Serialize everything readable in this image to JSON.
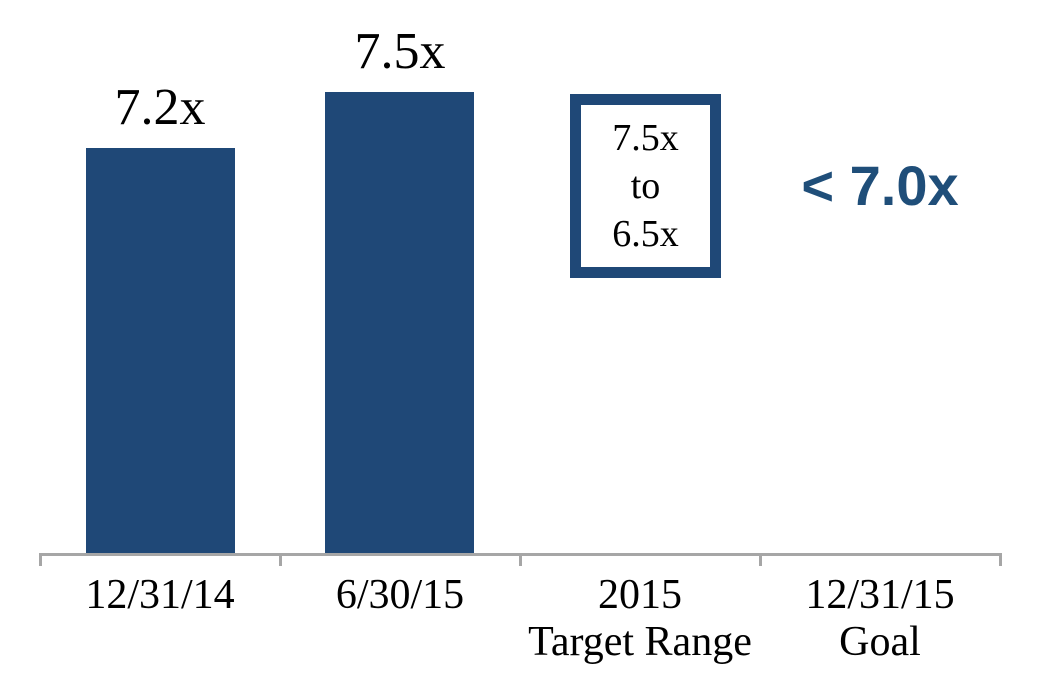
{
  "chart_data": {
    "type": "bar",
    "title": "",
    "categories": [
      "12/31/14",
      "6/30/15",
      "2015 Target Range",
      "12/31/15 Goal"
    ],
    "series": [
      {
        "name": "leverage-ratio",
        "values": [
          7.2,
          7.5,
          null,
          null
        ]
      }
    ],
    "bar_value_labels": [
      "7.2x",
      "7.5x"
    ],
    "target_range": {
      "high": "7.5x",
      "connector": "to",
      "low": "6.5x"
    },
    "goal_label": "< 7.0x",
    "ylim": [
      5.0,
      8.0
    ],
    "grid": false,
    "legend": false,
    "layout_hints": {
      "axis_color": "#a6a6a6",
      "bar_color": "#1f4877",
      "goal_text_color": "#1f4e79",
      "value_label_position": "above-bar",
      "tick_count": 5
    }
  },
  "bars": [
    {
      "value_label": "7.2x"
    },
    {
      "value_label": "7.5x"
    }
  ],
  "target_box": {
    "line1": "7.5x",
    "line2": "to",
    "line3": "6.5x"
  },
  "goal": {
    "text": "< 7.0x"
  },
  "axis_labels": [
    {
      "line1": "12/31/14",
      "line2": ""
    },
    {
      "line1": "6/30/15",
      "line2": ""
    },
    {
      "line1": "2015",
      "line2": "Target Range"
    },
    {
      "line1": "12/31/15",
      "line2": "Goal"
    }
  ],
  "colors": {
    "bar": "#1f4877",
    "goal_text": "#1f4e79",
    "axis": "#a6a6a6",
    "label_text": "#000000",
    "background": "#ffffff"
  }
}
